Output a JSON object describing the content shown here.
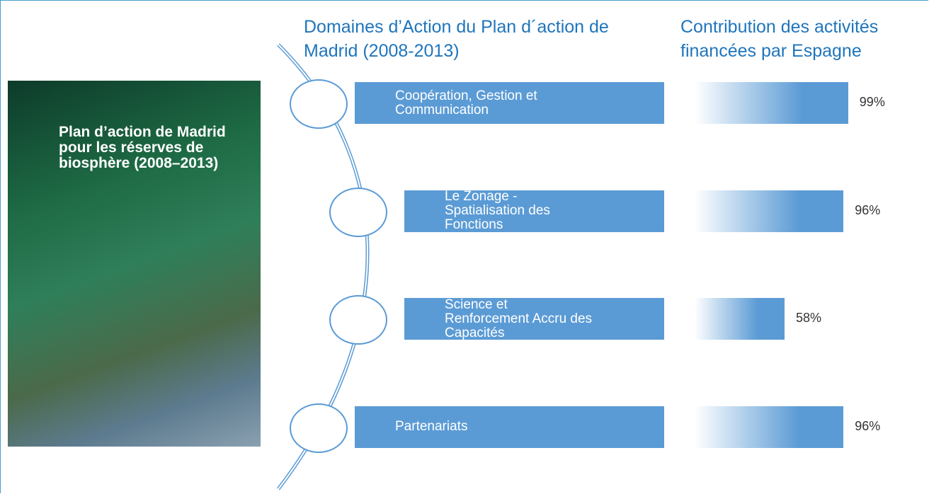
{
  "cover": {
    "title": "Plan d’action de Madrid pour les réserves de biosphère (2008–2013)"
  },
  "chart_data": {
    "type": "bar",
    "category_title": "Domaines d’Action du Plan d´action de Madrid (2008-2013)",
    "title": "Contribution des activités financées par Espagne",
    "categories": [
      "Coopération, Gestion et Communication",
      "Le Zonage - Spatialisation des Fonctions",
      "Science et Renforcement Accru des Capacités",
      "Partenariats"
    ],
    "values": [
      99,
      96,
      58,
      96
    ],
    "value_labels": [
      "99%",
      "96%",
      "58%",
      "96%"
    ],
    "color": "#5b9bd5"
  }
}
